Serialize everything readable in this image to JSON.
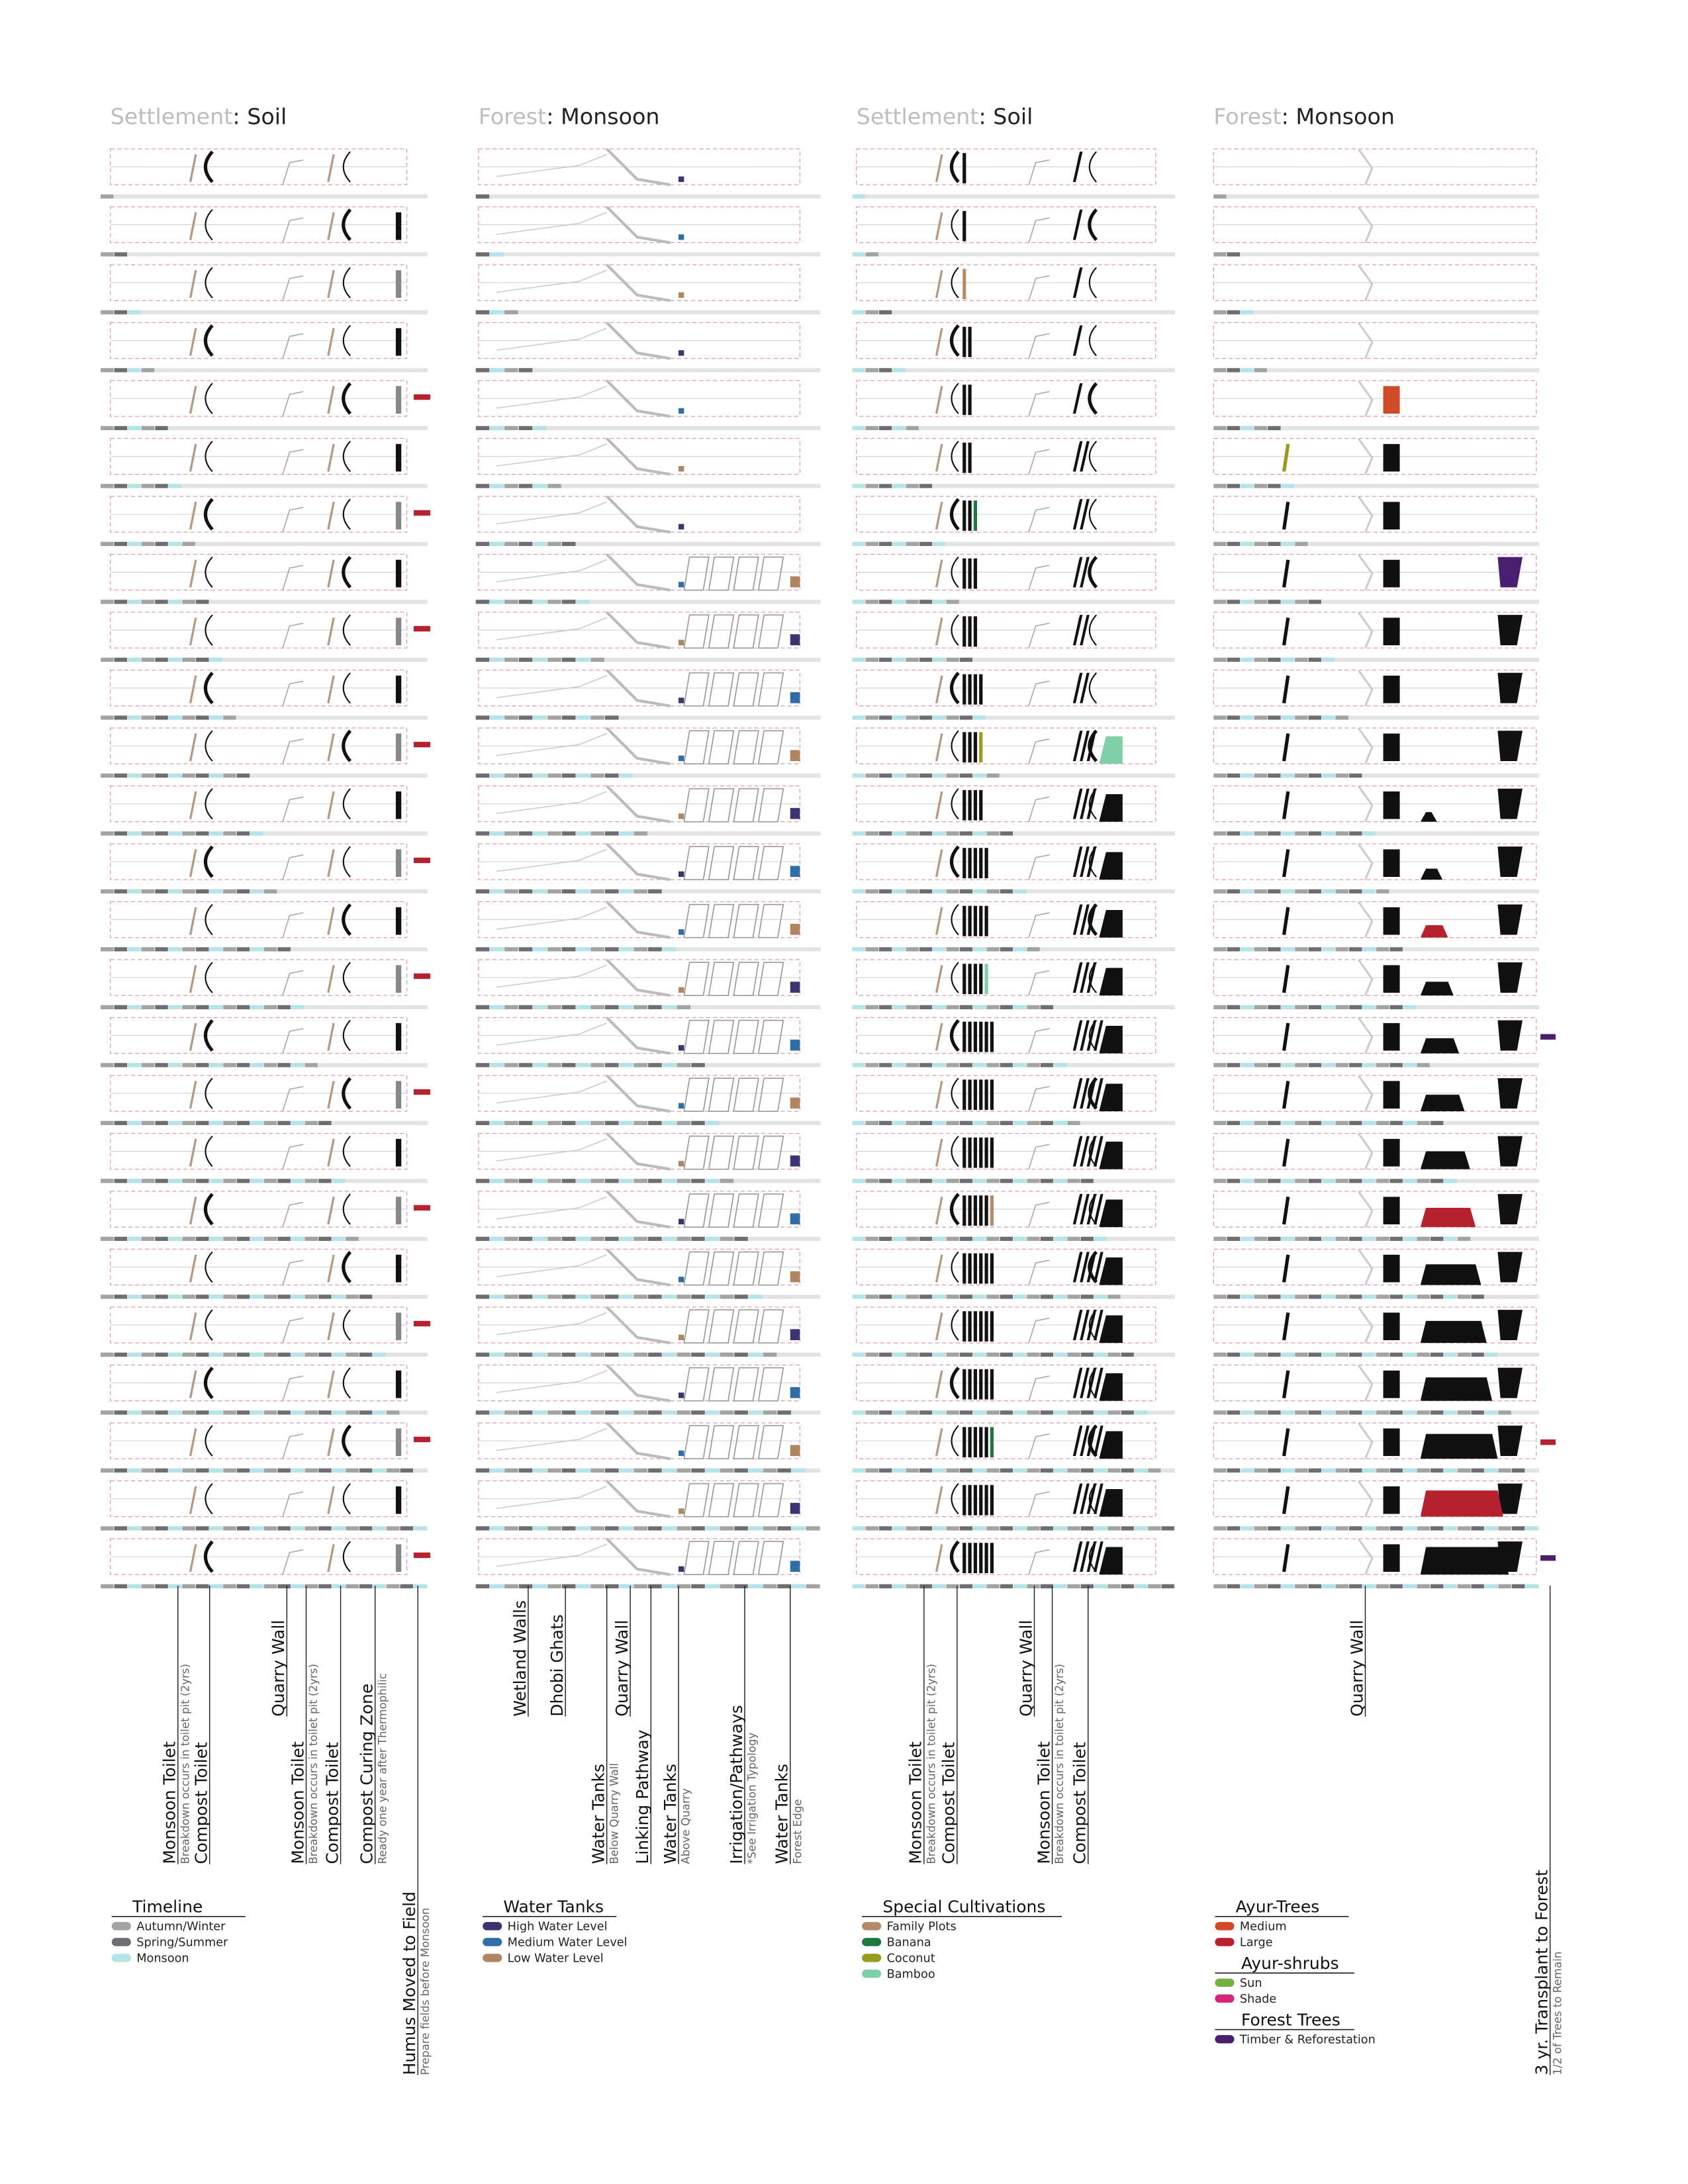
{
  "columns": [
    {
      "heading": {
        "place": "Settlement",
        "theme": ": Soil"
      },
      "labels": [
        {
          "text": "Monsoon Toilet",
          "note": "Breakdown occurs in toilet pit (2yrs)"
        },
        {
          "text": "Compost Toilet"
        },
        {
          "text": "Quarry Wall"
        },
        {
          "text": "Monsoon Toilet",
          "note": "Breakdown occurs in toilet pit (2yrs)"
        },
        {
          "text": "Compost Toilet"
        },
        {
          "text": "Compost Curing Zone",
          "note": "Ready one year after Thermophilic"
        },
        {
          "text": "Humus Moved to Field",
          "note": "Prepare fields before Monsoon"
        }
      ]
    },
    {
      "heading": {
        "place": "Forest",
        "theme": ": Monsoon"
      },
      "labels": [
        {
          "text": "Wetland Walls"
        },
        {
          "text": "Dhobi Ghats"
        },
        {
          "text": "Water Tanks",
          "note": "Below Quarry Wall"
        },
        {
          "text": "Quarry Wall"
        },
        {
          "text": "Linking Pathway"
        },
        {
          "text": "Water Tanks",
          "note": "Above Quarry"
        },
        {
          "text": "Irrigation/Pathways",
          "note": "*See Irrigation Typology"
        },
        {
          "text": "Water Tanks",
          "note": "Forest Edge"
        }
      ]
    },
    {
      "heading": {
        "place": "Settlement",
        "theme": ": Soil"
      },
      "labels": [
        {
          "text": "Monsoon Toilet",
          "note": "Breakdown occurs in toilet pit (2yrs)"
        },
        {
          "text": "Compost Toilet"
        },
        {
          "text": "Quarry Wall"
        },
        {
          "text": "Monsoon Toilet",
          "note": "Breakdown occurs in toilet pit (2yrs)"
        },
        {
          "text": "Compost Toilet"
        }
      ]
    },
    {
      "heading": {
        "place": "Forest",
        "theme": ": Monsoon"
      },
      "labels": [
        {
          "text": "Quarry Wall"
        },
        {
          "text": "3 yr. Transplant to Forest",
          "note": "1/2 of Trees to Remain"
        }
      ]
    }
  ],
  "legends": [
    {
      "groups": [
        {
          "title": "Timeline",
          "items": [
            {
              "label": "Autumn/Winter",
              "color": "#a3a3a3"
            },
            {
              "label": "Spring/Summer",
              "color": "#6d6e71"
            },
            {
              "label": "Monsoon",
              "color": "#b5e3ea"
            }
          ]
        }
      ]
    },
    {
      "groups": [
        {
          "title": "Water Tanks",
          "items": [
            {
              "label": "High Water Level",
              "color": "#3b3470"
            },
            {
              "label": "Medium Water Level",
              "color": "#2f6ea6"
            },
            {
              "label": "Low Water Level",
              "color": "#b08560"
            }
          ]
        }
      ]
    },
    {
      "groups": [
        {
          "title": "Special Cultivations",
          "items": [
            {
              "label": "Family Plots",
              "color": "#b58a6b"
            },
            {
              "label": "Banana",
              "color": "#1b7a3e"
            },
            {
              "label": "Coconut",
              "color": "#9a9a1e"
            },
            {
              "label": "Bamboo",
              "color": "#7fcfa8"
            }
          ]
        }
      ]
    },
    {
      "groups": [
        {
          "title": "Ayur-Trees",
          "items": [
            {
              "label": "Medium",
              "color": "#d04a28"
            },
            {
              "label": "Large",
              "color": "#b7202e"
            }
          ]
        },
        {
          "title": "Ayur-shrubs",
          "items": [
            {
              "label": "Sun",
              "color": "#76b043"
            },
            {
              "label": "Shade",
              "color": "#d6257a"
            }
          ]
        },
        {
          "title": "Forest Trees",
          "items": [
            {
              "label": "Timber & Reforestation",
              "color": "#4b1f6f"
            }
          ]
        }
      ]
    }
  ]
}
